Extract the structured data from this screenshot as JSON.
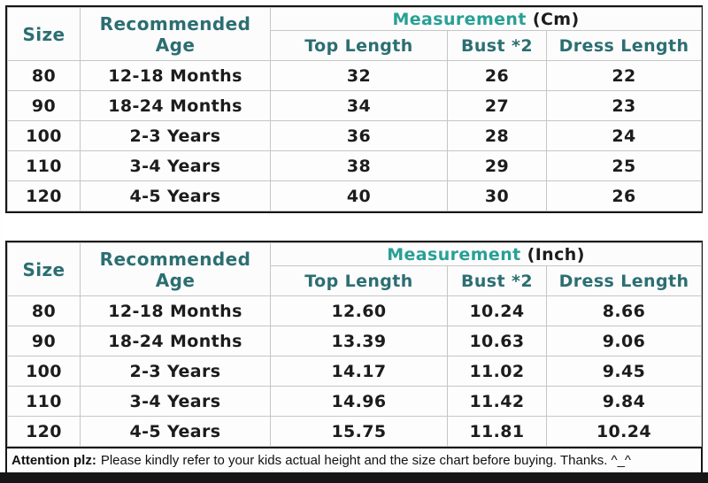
{
  "colors": {
    "header_teal": "#2c6e72",
    "measurement_teal": "#28a096",
    "body_text": "#1c1c1c",
    "grid_line": "#c6c6c6",
    "outer_border": "#161616"
  },
  "chart_data": [
    {
      "type": "table",
      "size_header": "Size",
      "age_header": "Recommended Age",
      "title_label": "Measurement",
      "title_unit": "(Cm)",
      "columns": [
        "Top Length",
        "Bust *2",
        "Dress Length"
      ],
      "rows": [
        {
          "size": "80",
          "age": "12-18 Months",
          "top_length": "32",
          "bust": "26",
          "dress_length": "22"
        },
        {
          "size": "90",
          "age": "18-24 Months",
          "top_length": "34",
          "bust": "27",
          "dress_length": "23"
        },
        {
          "size": "100",
          "age": "2-3 Years",
          "top_length": "36",
          "bust": "28",
          "dress_length": "24"
        },
        {
          "size": "110",
          "age": "3-4 Years",
          "top_length": "38",
          "bust": "29",
          "dress_length": "25"
        },
        {
          "size": "120",
          "age": "4-5 Years",
          "top_length": "40",
          "bust": "30",
          "dress_length": "26"
        }
      ]
    },
    {
      "type": "table",
      "size_header": "Size",
      "age_header": "Recommended Age",
      "title_label": "Measurement",
      "title_unit": "(Inch)",
      "columns": [
        "Top Length",
        "Bust *2",
        "Dress Length"
      ],
      "rows": [
        {
          "size": "80",
          "age": "12-18 Months",
          "top_length": "12.60",
          "bust": "10.24",
          "dress_length": "8.66"
        },
        {
          "size": "90",
          "age": "18-24 Months",
          "top_length": "13.39",
          "bust": "10.63",
          "dress_length": "9.06"
        },
        {
          "size": "100",
          "age": "2-3 Years",
          "top_length": "14.17",
          "bust": "11.02",
          "dress_length": "9.45"
        },
        {
          "size": "110",
          "age": "3-4 Years",
          "top_length": "14.96",
          "bust": "11.42",
          "dress_length": "9.84"
        },
        {
          "size": "120",
          "age": "4-5 Years",
          "top_length": "15.75",
          "bust": "11.81",
          "dress_length": "10.24"
        }
      ]
    }
  ],
  "footer": {
    "attention_label": "Attention plz:",
    "attention_text": "Please kindly refer to your kids actual height and the size chart before buying. Thanks. ^_^"
  }
}
